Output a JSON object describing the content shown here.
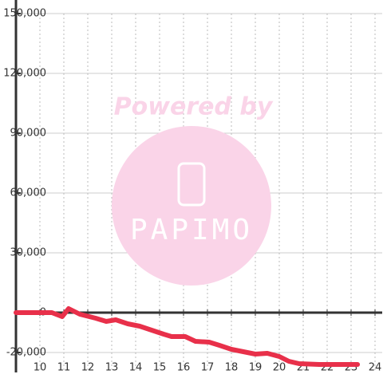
{
  "chart_data": {
    "type": "line",
    "watermark": {
      "top": "Powered by",
      "bottom": "PAPIMO"
    },
    "x": [
      9,
      10.5,
      10.93,
      11.2,
      11.67,
      12.33,
      12.77,
      13.17,
      13.67,
      14.17,
      14.67,
      15.17,
      15.5,
      16.07,
      16.5,
      17.07,
      17.5,
      18,
      18.5,
      19,
      19.5,
      20,
      20.4,
      20.83,
      21.67,
      23.27
    ],
    "series": [
      {
        "color": "#e8304a",
        "values": [
          0,
          0,
          -2000,
          2000,
          -800,
          -2800,
          -4400,
          -3600,
          -5600,
          -6800,
          -8800,
          -10800,
          -12000,
          -12000,
          -14400,
          -14800,
          -16400,
          -18400,
          -19600,
          -20800,
          -20400,
          -22000,
          -24400,
          -25600,
          -26000,
          -26000
        ]
      }
    ],
    "xlim": [
      9,
      24.3
    ],
    "ylim": [
      -30000,
      150000
    ],
    "xticks": [
      10,
      11,
      12,
      13,
      14,
      15,
      16,
      17,
      18,
      19,
      20,
      21,
      22,
      23,
      24
    ],
    "yticks": [
      {
        "value": 150000,
        "label": "150,000"
      },
      {
        "value": 120000,
        "label": "120,000"
      },
      {
        "value": 90000,
        "label": "90,000"
      },
      {
        "value": 60000,
        "label": "60,000"
      },
      {
        "value": 30000,
        "label": "30,000"
      },
      0,
      {
        "value": -20000,
        "label": "-20,000"
      }
    ],
    "grid": true
  }
}
